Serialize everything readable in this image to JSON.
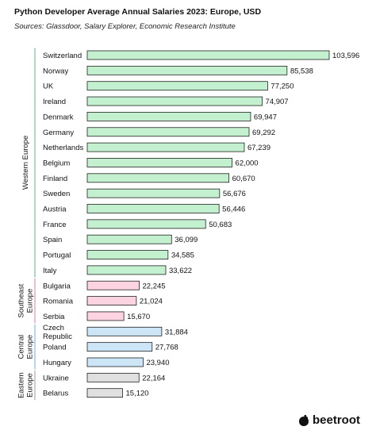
{
  "chart_data": {
    "type": "bar",
    "orientation": "horizontal",
    "title": "Python Developer Average Annual Salaries 2023: Europe, USD",
    "subtitle": "Sources: Glassdoor, Salary Explorer, Economic Research Institute",
    "xlim": [
      0,
      103596
    ],
    "groups": [
      {
        "name": "Western Europe",
        "label_lines": [
          "Western Europe"
        ],
        "color": "#c3f0cf",
        "line_color": "#8fd4a6",
        "items": [
          {
            "category": "Switzerland",
            "value": 103596,
            "label": "103,596"
          },
          {
            "category": "Norway",
            "value": 85538,
            "label": "85,538"
          },
          {
            "category": "UK",
            "value": 77250,
            "label": "77,250"
          },
          {
            "category": "Ireland",
            "value": 74907,
            "label": "74,907"
          },
          {
            "category": "Denmark",
            "value": 69947,
            "label": "69,947"
          },
          {
            "category": "Germany",
            "value": 69292,
            "label": "69,292"
          },
          {
            "category": "Netherlands",
            "value": 67239,
            "label": "67,239"
          },
          {
            "category": "Belgium",
            "value": 62000,
            "label": "62,000"
          },
          {
            "category": "Finland",
            "value": 60670,
            "label": "60,670"
          },
          {
            "category": "Sweden",
            "value": 56676,
            "label": "56,676"
          },
          {
            "category": "Austria",
            "value": 56446,
            "label": "56,446"
          },
          {
            "category": "France",
            "value": 50683,
            "label": "50,683"
          },
          {
            "category": "Spain",
            "value": 36099,
            "label": "36,099"
          },
          {
            "category": "Portugal",
            "value": 34585,
            "label": "34,585"
          },
          {
            "category": "Italy",
            "value": 33622,
            "label": "33,622"
          }
        ]
      },
      {
        "name": "Southeast Europe",
        "label_lines": [
          "Southeast",
          "Europe"
        ],
        "color": "#fcd3e0",
        "line_color": "#f0a8c0",
        "items": [
          {
            "category": "Bulgaria",
            "value": 22245,
            "label": "22,245"
          },
          {
            "category": "Romania",
            "value": 21024,
            "label": "21,024"
          },
          {
            "category": "Serbia",
            "value": 15670,
            "label": "15,670"
          }
        ]
      },
      {
        "name": "Central Europe",
        "label_lines": [
          "Central",
          "Europe"
        ],
        "color": "#cce6f8",
        "line_color": "#9ccbed",
        "items": [
          {
            "category": "Czech Republic",
            "category_lines": [
              "Czech",
              "Republic"
            ],
            "value": 31884,
            "label": "31,884"
          },
          {
            "category": "Poland",
            "value": 27768,
            "label": "27,768"
          },
          {
            "category": "Hungary",
            "value": 23940,
            "label": "23,940"
          }
        ]
      },
      {
        "name": "Eastern Europe",
        "label_lines": [
          "Eastern",
          "Europe"
        ],
        "color": "#e0e0e0",
        "line_color": "#bdbdbd",
        "items": [
          {
            "category": "Ukraine",
            "value": 22164,
            "label": "22,164"
          },
          {
            "category": "Belarus",
            "value": 15120,
            "label": "15,120"
          }
        ]
      }
    ]
  },
  "brand": {
    "name": "beetroot",
    "icon": "beetroot-logo-icon"
  }
}
